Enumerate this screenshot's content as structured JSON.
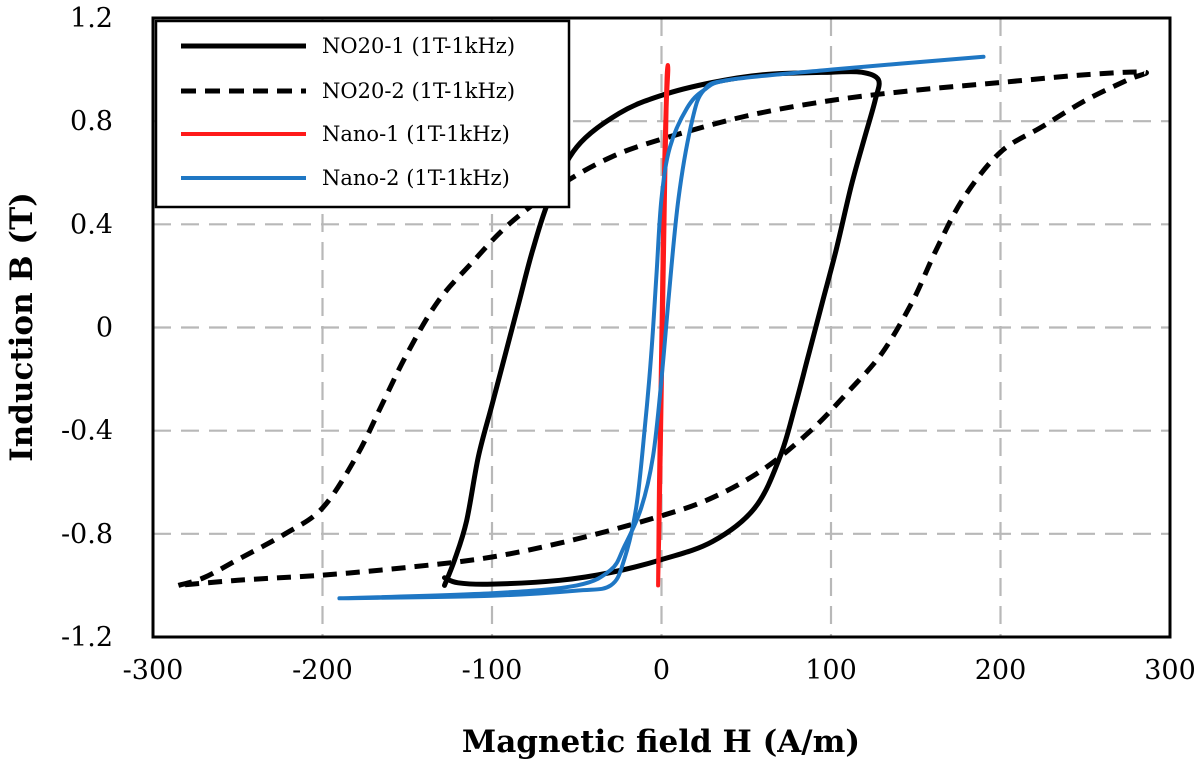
{
  "chart_data": {
    "type": "line",
    "title": "",
    "xlabel": "Magnetic field H (A/m)",
    "ylabel": "Induction B (T)",
    "xlim": [
      -300,
      300
    ],
    "ylim": [
      -1.2,
      1.2
    ],
    "xticks": [
      -300,
      -200,
      -100,
      0,
      100,
      200,
      300
    ],
    "yticks": [
      -1.2,
      -0.8,
      -0.4,
      0,
      0.4,
      0.8,
      1.2
    ],
    "xtick_labels": [
      "-300",
      "-200",
      "-100",
      "0",
      "100",
      "200",
      "300"
    ],
    "ytick_labels": [
      "-1.2",
      "-0.8",
      "-0.4",
      "0",
      "0.4",
      "0.8",
      "1.2"
    ],
    "grid": true,
    "legend_position": "top-left",
    "series": [
      {
        "name": "NO20-1 (1T-1kHz)",
        "color": "#000000",
        "style": "solid",
        "points": [
          [
            -128,
            -1.0
          ],
          [
            -122,
            -0.9
          ],
          [
            -115,
            -0.75
          ],
          [
            -108,
            -0.5
          ],
          [
            -100,
            -0.3
          ],
          [
            -92,
            -0.1
          ],
          [
            -84,
            0.1
          ],
          [
            -76,
            0.3
          ],
          [
            -66,
            0.5
          ],
          [
            -50,
            0.7
          ],
          [
            -25,
            0.83
          ],
          [
            0,
            0.9
          ],
          [
            30,
            0.95
          ],
          [
            60,
            0.98
          ],
          [
            100,
            0.99
          ],
          [
            118,
            0.99
          ],
          [
            128,
            0.96
          ],
          [
            126,
            0.88
          ],
          [
            120,
            0.74
          ],
          [
            112,
            0.55
          ],
          [
            103,
            0.3
          ],
          [
            95,
            0.1
          ],
          [
            87,
            -0.1
          ],
          [
            79,
            -0.3
          ],
          [
            70,
            -0.5
          ],
          [
            55,
            -0.7
          ],
          [
            30,
            -0.83
          ],
          [
            0,
            -0.9
          ],
          [
            -30,
            -0.95
          ],
          [
            -60,
            -0.98
          ],
          [
            -100,
            -0.995
          ],
          [
            -120,
            -0.99
          ],
          [
            -128,
            -0.97
          ]
        ]
      },
      {
        "name": "NO20-2 (1T-1kHz)",
        "color": "#000000",
        "style": "dashed",
        "points": [
          [
            -285,
            -1.0
          ],
          [
            -270,
            -0.97
          ],
          [
            -250,
            -0.9
          ],
          [
            -222,
            -0.8
          ],
          [
            -200,
            -0.7
          ],
          [
            -180,
            -0.5
          ],
          [
            -165,
            -0.3
          ],
          [
            -150,
            -0.1
          ],
          [
            -132,
            0.1
          ],
          [
            -112,
            0.25
          ],
          [
            -90,
            0.4
          ],
          [
            -60,
            0.55
          ],
          [
            -30,
            0.66
          ],
          [
            0,
            0.73
          ],
          [
            50,
            0.82
          ],
          [
            100,
            0.88
          ],
          [
            150,
            0.92
          ],
          [
            200,
            0.95
          ],
          [
            250,
            0.98
          ],
          [
            285,
            0.99
          ],
          [
            275,
            0.96
          ],
          [
            250,
            0.88
          ],
          [
            225,
            0.78
          ],
          [
            200,
            0.68
          ],
          [
            178,
            0.5
          ],
          [
            162,
            0.3
          ],
          [
            148,
            0.1
          ],
          [
            130,
            -0.1
          ],
          [
            110,
            -0.25
          ],
          [
            88,
            -0.4
          ],
          [
            60,
            -0.55
          ],
          [
            30,
            -0.66
          ],
          [
            0,
            -0.73
          ],
          [
            -50,
            -0.82
          ],
          [
            -100,
            -0.89
          ],
          [
            -150,
            -0.93
          ],
          [
            -200,
            -0.96
          ],
          [
            -250,
            -0.98
          ],
          [
            -285,
            -1.0
          ]
        ]
      },
      {
        "name": "Nano-1 (1T-1kHz)",
        "color": "#ff1a1a",
        "style": "solid",
        "points": [
          [
            -2,
            -1.0
          ],
          [
            -1.5,
            -0.6
          ],
          [
            -0.5,
            -0.2
          ],
          [
            0.5,
            0.2
          ],
          [
            1.5,
            0.6
          ],
          [
            3,
            0.97
          ],
          [
            4,
            1.0
          ],
          [
            3,
            0.85
          ],
          [
            2,
            0.5
          ],
          [
            1,
            0.1
          ],
          [
            0,
            -0.3
          ],
          [
            -1,
            -0.7
          ],
          [
            -2,
            -1.0
          ]
        ]
      },
      {
        "name": "Nano-2 (1T-1kHz)",
        "color": "#1f77c4",
        "style": "solid",
        "points": [
          [
            -190,
            -1.05
          ],
          [
            -100,
            -1.04
          ],
          [
            -50,
            -1.02
          ],
          [
            -30,
            -1.0
          ],
          [
            -22,
            -0.9
          ],
          [
            -15,
            -0.7
          ],
          [
            -10,
            -0.4
          ],
          [
            -6,
            -0.1
          ],
          [
            -3,
            0.2
          ],
          [
            0,
            0.5
          ],
          [
            5,
            0.7
          ],
          [
            15,
            0.85
          ],
          [
            25,
            0.92
          ],
          [
            40,
            0.96
          ],
          [
            100,
            1.0
          ],
          [
            190,
            1.05
          ],
          [
            100,
            1.0
          ],
          [
            40,
            0.96
          ],
          [
            25,
            0.92
          ],
          [
            18,
            0.8
          ],
          [
            10,
            0.5
          ],
          [
            4,
            0.1
          ],
          [
            0,
            -0.2
          ],
          [
            -5,
            -0.5
          ],
          [
            -12,
            -0.7
          ],
          [
            -22,
            -0.85
          ],
          [
            -30,
            -0.94
          ],
          [
            -50,
            -1.0
          ],
          [
            -100,
            -1.03
          ],
          [
            -190,
            -1.05
          ]
        ]
      }
    ]
  }
}
